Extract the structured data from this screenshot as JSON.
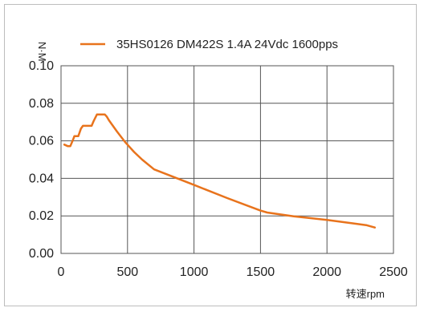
{
  "chart_data": {
    "type": "line",
    "ylabel": "N·M",
    "xlabel": "转速rpm",
    "xlim": [
      0,
      2500
    ],
    "ylim": [
      0,
      0.1
    ],
    "x_ticks": [
      "0",
      "500",
      "1000",
      "1500",
      "2000",
      "2500"
    ],
    "y_ticks": [
      "0.00",
      "0.02",
      "0.04",
      "0.06",
      "0.08",
      "0.10"
    ],
    "x_tick_values": [
      0,
      500,
      1000,
      1500,
      2000,
      2500
    ],
    "y_tick_values": [
      0,
      0.02,
      0.04,
      0.06,
      0.08,
      0.1
    ],
    "grid": true,
    "legend_position": "top",
    "series": [
      {
        "name": "35HS0126 DM422S 1.4A 24Vdc 1600pps",
        "color": "#e8731c",
        "x": [
          25,
          50,
          70,
          90,
          100,
          115,
          130,
          150,
          165,
          185,
          200,
          230,
          245,
          270,
          285,
          310,
          330,
          345,
          360,
          380,
          420,
          480,
          550,
          610,
          700,
          820,
          1000,
          1250,
          1500,
          1550,
          1750,
          2000,
          2200,
          2300,
          2360
        ],
        "y": [
          0.058,
          0.0572,
          0.0572,
          0.0605,
          0.0625,
          0.0625,
          0.0625,
          0.0665,
          0.068,
          0.068,
          0.068,
          0.068,
          0.0705,
          0.074,
          0.074,
          0.074,
          0.074,
          0.0728,
          0.071,
          0.069,
          0.065,
          0.0595,
          0.054,
          0.05,
          0.0448,
          0.0415,
          0.0365,
          0.0295,
          0.0228,
          0.0218,
          0.0198,
          0.0178,
          0.016,
          0.015,
          0.0138
        ]
      }
    ]
  }
}
